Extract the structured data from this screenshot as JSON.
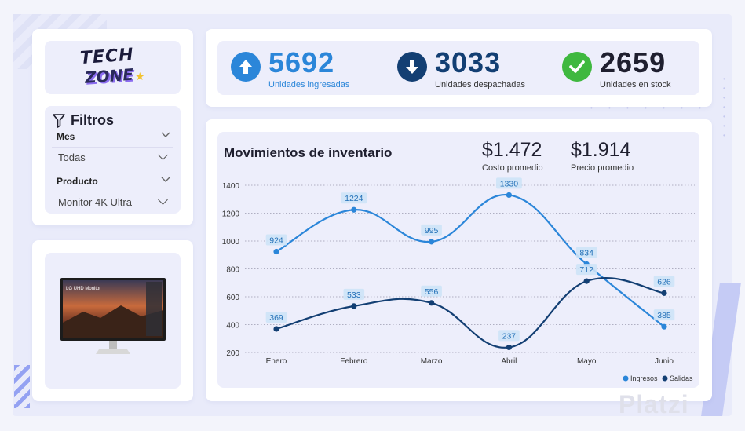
{
  "brand": {
    "logo_line1": "TECH",
    "logo_line2": "ZONE"
  },
  "filters": {
    "title": "Filtros",
    "month_label": "Mes",
    "month_value": "Todas",
    "product_label": "Producto",
    "product_value": "Monitor 4K Ultra"
  },
  "product_image": {
    "screen_text": "LG UHD Monitor"
  },
  "kpis": [
    {
      "value": "5692",
      "label": "Unidades ingresadas",
      "icon": "arrow-up-icon",
      "color": "#2b86d9"
    },
    {
      "value": "3033",
      "label": "Unidades despachadas",
      "icon": "arrow-down-icon",
      "color": "#133f73"
    },
    {
      "value": "2659",
      "label": "Unidades en stock",
      "icon": "check-icon",
      "color": "#1f1f2f"
    }
  ],
  "stats": {
    "cost_value": "$1.472",
    "cost_label": "Costo promedio",
    "price_value": "$1.914",
    "price_label": "Precio promedio"
  },
  "chart_data": {
    "type": "line",
    "title": "Movimientos de inventario",
    "categories": [
      "Enero",
      "Febrero",
      "Marzo",
      "Abril",
      "Mayo",
      "Junio"
    ],
    "ylim": [
      200,
      1400
    ],
    "yticks": [
      200,
      400,
      600,
      800,
      1000,
      1200,
      1400
    ],
    "grid": true,
    "legend": "bottom-right",
    "series": [
      {
        "name": "Ingresos",
        "color": "#2b86d9",
        "values": [
          924,
          1224,
          995,
          1330,
          834,
          385
        ]
      },
      {
        "name": "Salidas",
        "color": "#133f73",
        "values": [
          369,
          533,
          556,
          237,
          712,
          626
        ]
      }
    ]
  },
  "watermark": "Platzi"
}
